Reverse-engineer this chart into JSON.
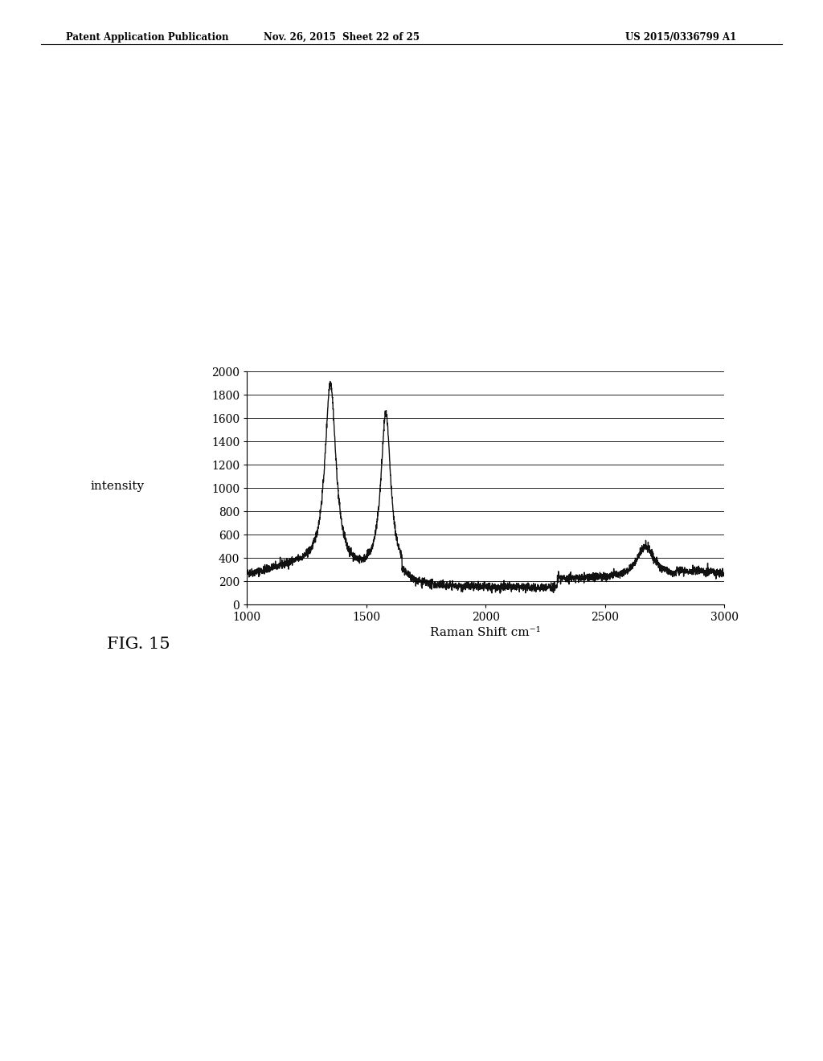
{
  "background_color": "#ffffff",
  "header_left": "Patent Application Publication",
  "header_center": "Nov. 26, 2015  Sheet 22 of 25",
  "header_right": "US 2015/0336799 A1",
  "fig_label": "FIG. 15",
  "xlabel": "Raman Shift cm⁻¹",
  "ylabel": "intensity",
  "xlim": [
    1000,
    3000
  ],
  "ylim": [
    0,
    2000
  ],
  "yticks": [
    0,
    200,
    400,
    600,
    800,
    1000,
    1200,
    1400,
    1600,
    1800,
    2000
  ],
  "xticks": [
    1000,
    1500,
    2000,
    2500,
    3000
  ],
  "line_color": "#111111",
  "line_width": 1.0,
  "noise_amplitude": 18,
  "baseline": 220
}
